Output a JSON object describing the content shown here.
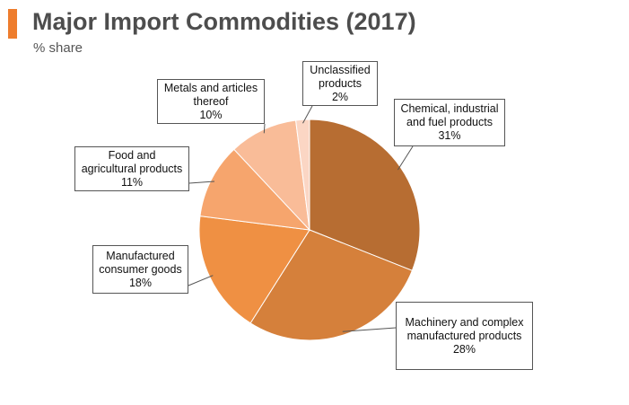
{
  "header": {
    "title": "Major Import Commodities (2017)",
    "subtitle": "% share",
    "accent_color": "#ee7d2d"
  },
  "chart_data": {
    "type": "pie",
    "title": "Major Import Commodities (2017)",
    "unit": "% share",
    "start": "12 o'clock, clockwise",
    "slices": [
      {
        "name": "Chemical, industrial and fuel products",
        "label_lines": [
          "Chemical, industrial",
          "and fuel products"
        ],
        "value": 31,
        "value_label": "31%",
        "color": "#b76d32"
      },
      {
        "name": "Machinery and complex manufactured products",
        "label_lines": [
          "Machinery and complex",
          "manufactured products"
        ],
        "value": 28,
        "value_label": "28%",
        "color": "#d5803b"
      },
      {
        "name": "Manufactured consumer goods",
        "label_lines": [
          "Manufactured",
          "consumer goods"
        ],
        "value": 18,
        "value_label": "18%",
        "color": "#ef9043"
      },
      {
        "name": "Food and agricultural products",
        "label_lines": [
          "Food and",
          "agricultural products"
        ],
        "value": 11,
        "value_label": "11%",
        "color": "#f6a56d"
      },
      {
        "name": "Metals and articles thereof",
        "label_lines": [
          "Metals and articles",
          "thereof"
        ],
        "value": 10,
        "value_label": "10%",
        "color": "#f9bc98"
      },
      {
        "name": "Unclassified products",
        "label_lines": [
          "Unclassified",
          "products"
        ],
        "value": 2,
        "value_label": "2%",
        "color": "#fbd6c4"
      }
    ]
  }
}
